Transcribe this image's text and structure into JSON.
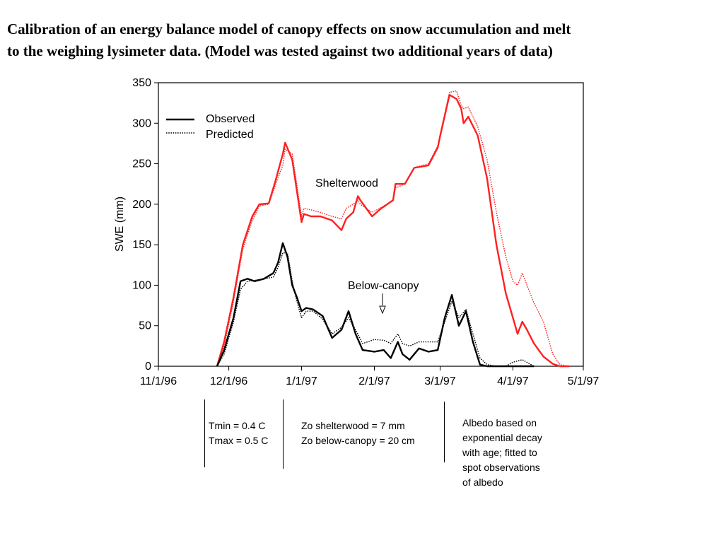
{
  "title_lines": [
    "Calibration of an energy balance model of canopy effects on snow accumulation and melt",
    "to the weighing lysimeter data.  (Model was tested against two additional years of data)"
  ],
  "chart_data": {
    "type": "line",
    "title": "",
    "xlabel": "",
    "ylabel": "SWE (mm)",
    "x_ticks": [
      "11/1/96",
      "12/1/96",
      "1/1/97",
      "2/1/97",
      "3/1/97",
      "4/1/97",
      "5/1/97"
    ],
    "y_ticks": [
      "0",
      "50",
      "100",
      "150",
      "200",
      "250",
      "300",
      "350"
    ],
    "xlim": [
      "1996-11-01",
      "1997-05-01"
    ],
    "ylim": [
      0,
      350
    ],
    "grid": false,
    "legend": {
      "placement": "top-left",
      "entries": [
        {
          "label": "Observed",
          "style": "solid"
        },
        {
          "label": "Predicted",
          "style": "dotted"
        }
      ]
    },
    "annotations": {
      "shelterwood": "Shelterwood",
      "below_canopy": "Below-canopy"
    },
    "colors": {
      "shelterwood": "#ff2020",
      "below_canopy": "#000000"
    },
    "series": [
      {
        "site": "Shelterwood",
        "kind": "Observed",
        "color": "#ff2020",
        "style": "solid",
        "x": [
          "1996-11-26",
          "1996-11-29",
          "1996-12-03",
          "1996-12-07",
          "1996-12-11",
          "1996-12-14",
          "1996-12-18",
          "1996-12-21",
          "1996-12-24",
          "1996-12-25",
          "1996-12-28",
          "1997-01-01",
          "1997-01-02",
          "1997-01-05",
          "1997-01-09",
          "1997-01-14",
          "1997-01-18",
          "1997-01-20",
          "1997-01-23",
          "1997-01-25",
          "1997-01-26",
          "1997-01-31",
          "1997-02-04",
          "1997-02-09",
          "1997-02-10",
          "1997-02-14",
          "1997-02-18",
          "1997-02-24",
          "1997-02-28",
          "1997-03-01",
          "1997-03-05",
          "1997-03-08",
          "1997-03-10",
          "1997-03-11",
          "1997-03-13",
          "1997-03-17",
          "1997-03-21",
          "1997-03-25",
          "1997-03-29",
          "1997-04-01",
          "1997-04-03",
          "1997-04-05",
          "1997-04-07",
          "1997-04-10",
          "1997-04-14",
          "1997-04-18",
          "1997-04-21",
          "1997-04-25"
        ],
        "values": [
          0,
          30,
          85,
          150,
          185,
          200,
          201,
          230,
          262,
          276,
          255,
          178,
          188,
          185,
          185,
          180,
          168,
          182,
          190,
          210,
          205,
          185,
          195,
          205,
          225,
          225,
          245,
          248,
          270,
          284,
          335,
          330,
          318,
          300,
          308,
          285,
          232,
          150,
          90,
          60,
          40,
          55,
          45,
          28,
          12,
          3,
          0,
          0
        ]
      },
      {
        "site": "Shelterwood",
        "kind": "Predicted",
        "color": "#ff2020",
        "style": "dotted",
        "x": [
          "1996-11-26",
          "1996-11-29",
          "1996-12-03",
          "1996-12-07",
          "1996-12-11",
          "1996-12-14",
          "1996-12-18",
          "1996-12-21",
          "1996-12-24",
          "1996-12-25",
          "1996-12-28",
          "1997-01-01",
          "1997-01-02",
          "1997-01-05",
          "1997-01-09",
          "1997-01-14",
          "1997-01-18",
          "1997-01-20",
          "1997-01-23",
          "1997-01-25",
          "1997-01-26",
          "1997-01-31",
          "1997-02-04",
          "1997-02-09",
          "1997-02-10",
          "1997-02-14",
          "1997-02-18",
          "1997-02-24",
          "1997-02-28",
          "1997-03-01",
          "1997-03-05",
          "1997-03-08",
          "1997-03-10",
          "1997-03-11",
          "1997-03-13",
          "1997-03-17",
          "1997-03-21",
          "1997-03-25",
          "1997-03-29",
          "1997-04-01",
          "1997-04-03",
          "1997-04-05",
          "1997-04-07",
          "1997-04-10",
          "1997-04-14",
          "1997-04-18",
          "1997-04-21",
          "1997-04-25"
        ],
        "values": [
          0,
          25,
          80,
          145,
          180,
          198,
          200,
          225,
          248,
          268,
          262,
          185,
          195,
          193,
          190,
          185,
          182,
          195,
          200,
          205,
          200,
          190,
          196,
          205,
          220,
          225,
          245,
          250,
          272,
          286,
          338,
          340,
          322,
          318,
          320,
          296,
          255,
          190,
          135,
          105,
          100,
          115,
          100,
          78,
          55,
          15,
          2,
          0
        ]
      },
      {
        "site": "Below-canopy",
        "kind": "Observed",
        "color": "#000000",
        "style": "solid",
        "x": [
          "1996-11-26",
          "1996-11-29",
          "1996-12-03",
          "1996-12-06",
          "1996-12-09",
          "1996-12-12",
          "1996-12-16",
          "1996-12-20",
          "1996-12-22",
          "1996-12-24",
          "1996-12-26",
          "1996-12-28",
          "1996-12-30",
          "1997-01-01",
          "1997-01-03",
          "1997-01-06",
          "1997-01-10",
          "1997-01-14",
          "1997-01-18",
          "1997-01-21",
          "1997-01-24",
          "1997-01-27",
          "1997-02-01",
          "1997-02-05",
          "1997-02-08",
          "1997-02-11",
          "1997-02-13",
          "1997-02-16",
          "1997-02-20",
          "1997-02-24",
          "1997-02-28",
          "1997-03-03",
          "1997-03-06",
          "1997-03-09",
          "1997-03-12",
          "1997-03-15",
          "1997-03-18",
          "1997-03-21",
          "1997-03-25",
          "1997-03-29",
          "1997-04-01",
          "1997-04-05",
          "1997-04-10"
        ],
        "values": [
          0,
          20,
          60,
          105,
          108,
          105,
          108,
          115,
          128,
          152,
          135,
          100,
          85,
          68,
          72,
          70,
          62,
          35,
          45,
          68,
          40,
          20,
          18,
          20,
          10,
          30,
          15,
          8,
          22,
          18,
          20,
          60,
          88,
          50,
          68,
          30,
          2,
          0,
          0,
          0,
          0,
          0,
          0
        ]
      },
      {
        "site": "Below-canopy",
        "kind": "Predicted",
        "color": "#000000",
        "style": "dotted",
        "x": [
          "1996-11-26",
          "1996-11-29",
          "1996-12-03",
          "1996-12-06",
          "1996-12-09",
          "1996-12-12",
          "1996-12-16",
          "1996-12-20",
          "1996-12-22",
          "1996-12-24",
          "1996-12-26",
          "1996-12-28",
          "1996-12-30",
          "1997-01-01",
          "1997-01-03",
          "1997-01-06",
          "1997-01-10",
          "1997-01-14",
          "1997-01-18",
          "1997-01-21",
          "1997-01-24",
          "1997-01-27",
          "1997-02-01",
          "1997-02-05",
          "1997-02-08",
          "1997-02-11",
          "1997-02-13",
          "1997-02-16",
          "1997-02-20",
          "1997-02-24",
          "1997-02-28",
          "1997-03-03",
          "1997-03-06",
          "1997-03-09",
          "1997-03-12",
          "1997-03-15",
          "1997-03-18",
          "1997-03-21",
          "1997-03-25",
          "1997-03-29",
          "1997-04-01",
          "1997-04-05",
          "1997-04-10"
        ],
        "values": [
          0,
          15,
          55,
          95,
          105,
          106,
          108,
          110,
          122,
          140,
          140,
          105,
          80,
          60,
          68,
          68,
          58,
          40,
          48,
          60,
          45,
          28,
          33,
          32,
          28,
          40,
          28,
          25,
          30,
          30,
          30,
          55,
          80,
          60,
          70,
          40,
          10,
          2,
          0,
          0,
          5,
          8,
          0
        ]
      }
    ]
  },
  "notes": {
    "temperature": [
      "Tmin = 0.4 C",
      "Tmax = 0.5 C"
    ],
    "roughness": [
      "Zo shelterwood = 7 mm",
      "Zo below-canopy = 20 cm"
    ],
    "albedo": [
      "Albedo based on",
      "exponential decay",
      "with age; fitted to",
      "spot observations",
      "of albedo"
    ]
  }
}
